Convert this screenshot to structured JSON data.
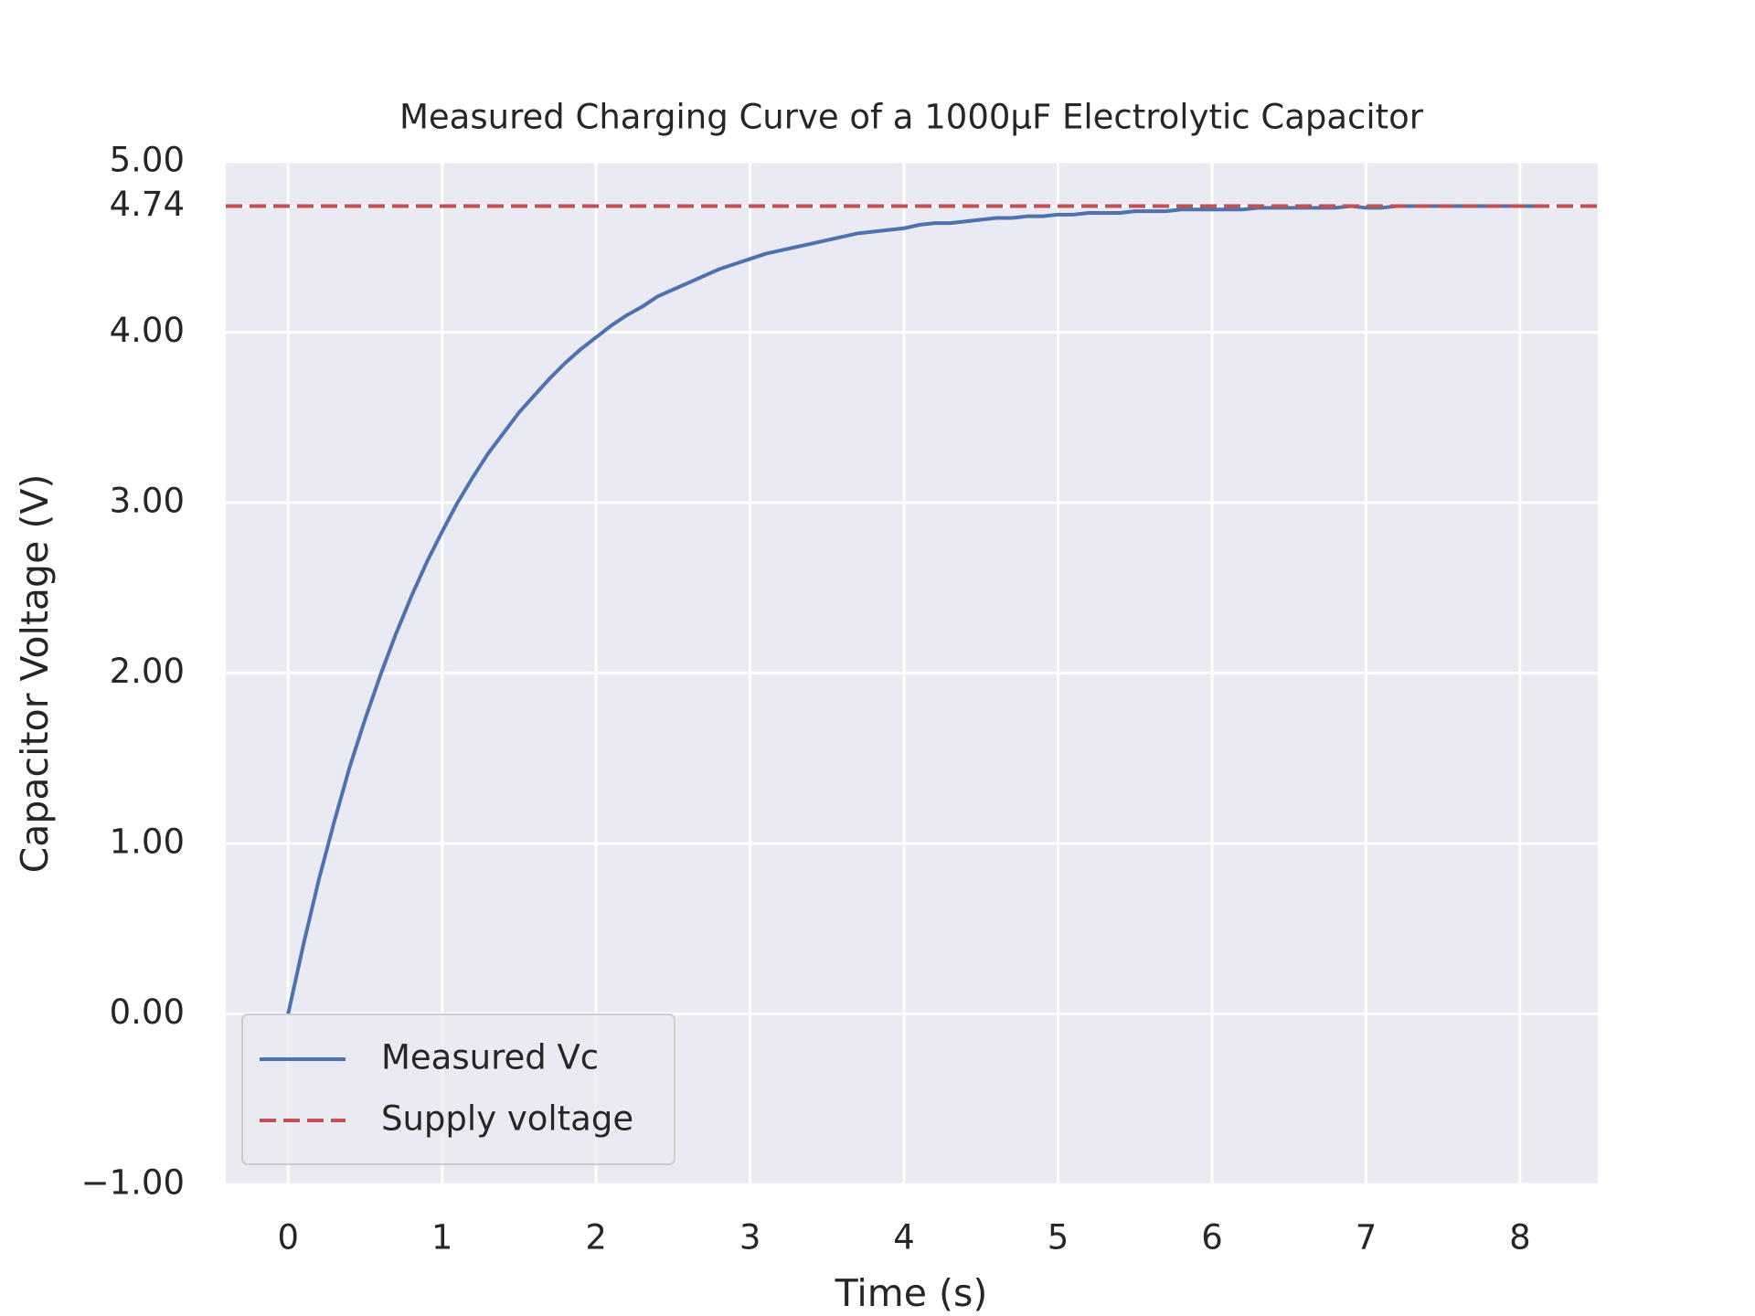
{
  "chart_data": {
    "type": "line",
    "title": "Measured Charging Curve of a 1000μF Electrolytic Capacitor",
    "x_label": "Time (s)",
    "y_label": "Capacitor Voltage (V)",
    "x": [
      0,
      0.1,
      0.2,
      0.3,
      0.4,
      0.5,
      0.6,
      0.7,
      0.8,
      0.9,
      1,
      1.1,
      1.2,
      1.3,
      1.4,
      1.5,
      1.6,
      1.7,
      1.8,
      1.9,
      2,
      2.1,
      2.2,
      2.3,
      2.4,
      2.5,
      2.6,
      2.7,
      2.8,
      2.9,
      3,
      3.1,
      3.2,
      3.3,
      3.4,
      3.5,
      3.6,
      3.7,
      3.8,
      3.9,
      4,
      4.1,
      4.2,
      4.3,
      4.4,
      4.5,
      4.6,
      4.7,
      4.8,
      4.9,
      5,
      5.1,
      5.2,
      5.3,
      5.4,
      5.5,
      5.6,
      5.7,
      5.8,
      5.9,
      6,
      6.1,
      6.2,
      6.3,
      6.4,
      6.5,
      6.6,
      6.7,
      6.8,
      6.9,
      7,
      7.1,
      7.2,
      7.3,
      7.4,
      7.5,
      7.6,
      7.7,
      7.8,
      7.9,
      8,
      8.1
    ],
    "series": [
      {
        "name": "Measured Vc",
        "color": "#4c72b0",
        "values": [
          0,
          0.41,
          0.79,
          1.13,
          1.45,
          1.73,
          1.99,
          2.23,
          2.45,
          2.65,
          2.83,
          3.0,
          3.15,
          3.29,
          3.41,
          3.53,
          3.63,
          3.73,
          3.82,
          3.9,
          3.97,
          4.04,
          4.1,
          4.15,
          4.21,
          4.25,
          4.29,
          4.33,
          4.37,
          4.4,
          4.43,
          4.46,
          4.48,
          4.5,
          4.52,
          4.54,
          4.56,
          4.58,
          4.59,
          4.6,
          4.61,
          4.63,
          4.64,
          4.64,
          4.65,
          4.66,
          4.67,
          4.67,
          4.68,
          4.68,
          4.69,
          4.69,
          4.7,
          4.7,
          4.7,
          4.71,
          4.71,
          4.71,
          4.72,
          4.72,
          4.72,
          4.72,
          4.72,
          4.73,
          4.73,
          4.73,
          4.73,
          4.73,
          4.73,
          4.74,
          4.73,
          4.73,
          4.74,
          4.74,
          4.74,
          4.74,
          4.74,
          4.74,
          4.74,
          4.74,
          4.74,
          4.74
        ]
      }
    ],
    "hlines": [
      {
        "name": "Supply voltage",
        "y": 4.74,
        "color": "#c44e52"
      }
    ],
    "xlim": [
      -0.405,
      8.505
    ],
    "ylim": [
      -1,
      5
    ],
    "xticks": [
      0,
      1,
      2,
      3,
      4,
      5,
      6,
      7,
      8
    ],
    "yticks": [
      {
        "value": -1,
        "label": "−1.00"
      },
      {
        "value": 0,
        "label": "0.00"
      },
      {
        "value": 1,
        "label": "1.00"
      },
      {
        "value": 2,
        "label": "2.00"
      },
      {
        "value": 3,
        "label": "3.00"
      },
      {
        "value": 4,
        "label": "4.00"
      },
      4.74,
      {
        "value": 5,
        "label": "5.00"
      }
    ],
    "grid": true,
    "legend": "lower left"
  }
}
